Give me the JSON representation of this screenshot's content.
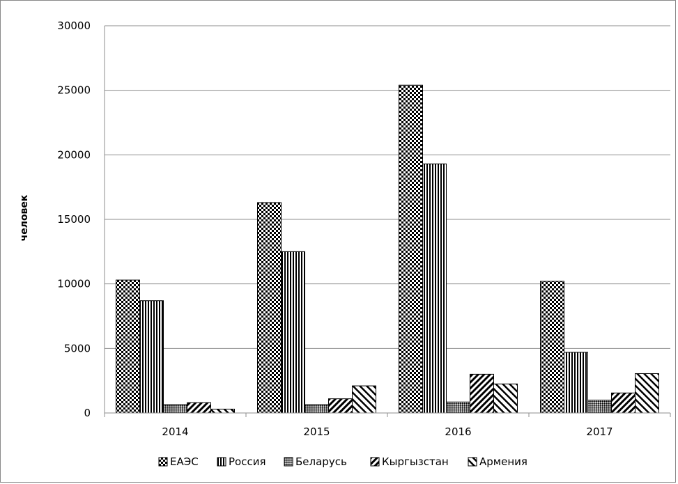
{
  "chart_data": {
    "type": "bar",
    "title": "",
    "xlabel": "",
    "ylabel": "человек",
    "categories": [
      "2014",
      "2015",
      "2016",
      "2017"
    ],
    "ylim": [
      0,
      30000
    ],
    "yticks": [
      0,
      5000,
      10000,
      15000,
      20000,
      25000,
      30000
    ],
    "grid": true,
    "legend_position": "bottom",
    "series": [
      {
        "name": "ЕАЭС",
        "values": [
          10300,
          16300,
          25400,
          10200
        ],
        "pattern": "checker"
      },
      {
        "name": "Россия",
        "values": [
          8700,
          12500,
          19300,
          4700
        ],
        "pattern": "vertical-lines"
      },
      {
        "name": "Беларусь",
        "values": [
          650,
          650,
          850,
          1000
        ],
        "pattern": "fine-checker"
      },
      {
        "name": "Кыргызстан",
        "values": [
          800,
          1100,
          3000,
          1550
        ],
        "pattern": "diagonal-up"
      },
      {
        "name": "Армения",
        "values": [
          300,
          2100,
          2250,
          3050
        ],
        "pattern": "diagonal-down"
      }
    ]
  }
}
